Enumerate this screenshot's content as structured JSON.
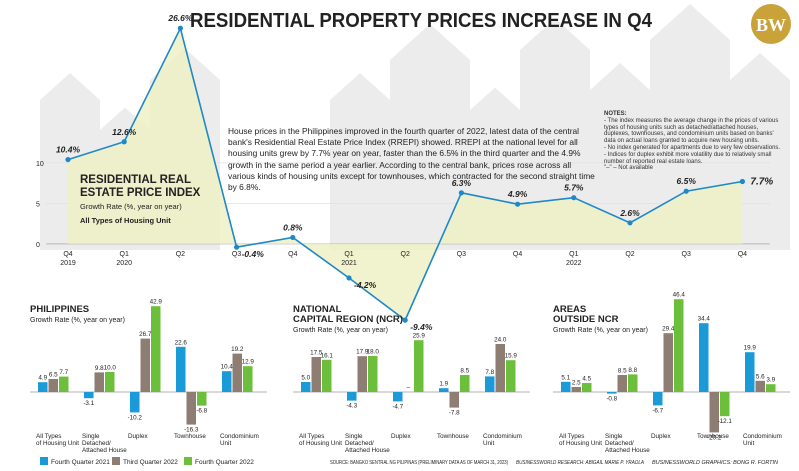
{
  "title": "RESIDENTIAL PROPERTY PRICES INCREASE IN Q4",
  "logo": "BW",
  "summary": "House prices in the Philippines improved in the fourth quarter of 2022, latest data of the central bank's Residential Real Estate Price Index (RREPI) showed. RREPI at the national level for all housing units grew by 7.7% year on year, faster than the 6.5% in the third quarter and the 4.9% growth in the same period a year earlier. According to the central bank, prices rose across all various kinds of housing units except for townhouses, which contracted for the second straight time by 6.8%.",
  "notes": {
    "heading": "NOTES:",
    "items": [
      "- The index measures the average change in the prices of various types of housing units such as detached/attached houses, duplexes, townhouses, and condominium units based on banks' data on actual loans granted to acquire new housing units.",
      "- No index generated for apartments due to very few observations.",
      "- Indices for duplex exhibit more volatility due to relatively small number of reported real estate loans.",
      "\"–\" – Not available"
    ]
  },
  "chart_data": [
    {
      "type": "line",
      "title_lines": [
        "RESIDENTIAL REAL",
        "ESTATE PRICE INDEX"
      ],
      "subtitle": "Growth Rate (%, year on year)",
      "series_name": "All Types of Housing Unit",
      "categories": [
        "Q4",
        "Q1",
        "Q2",
        "Q3",
        "Q4",
        "Q1",
        "Q2",
        "Q3",
        "Q4",
        "Q1",
        "Q2",
        "Q3",
        "Q4"
      ],
      "years": [
        "2019",
        "2020",
        null,
        null,
        null,
        "2021",
        null,
        null,
        null,
        "2022",
        null,
        null,
        null
      ],
      "values": [
        10.4,
        12.6,
        26.6,
        -0.4,
        0.8,
        -4.2,
        -9.4,
        6.3,
        4.9,
        5.7,
        2.6,
        6.5,
        7.7
      ],
      "value_labels": [
        "10.4%",
        "12.6%",
        "26.6%",
        "-0.4%",
        "0.8%",
        "-4.2%",
        "-9.4%",
        "6.3%",
        "4.9%",
        "5.7%",
        "2.6%",
        "6.5%",
        "7.7%"
      ],
      "color": "#1e88c8",
      "area_color": "#eff0c6",
      "ylim": [
        -10,
        27
      ],
      "yticks": [
        0,
        5,
        10
      ],
      "grid": true
    },
    {
      "type": "bar",
      "title_lines": [
        "PHILIPPINES"
      ],
      "subtitle": "Growth Rate (%, year on year)",
      "categories": [
        [
          "All Types",
          "of Housing Unit"
        ],
        [
          "Single",
          "Detached/",
          "Attached House"
        ],
        [
          "Duplex"
        ],
        [
          "Townhouse"
        ],
        [
          "Condominium",
          "Unit"
        ]
      ],
      "series": [
        {
          "name": "Fourth Quarter 2021",
          "color": "#1a9ad6",
          "values": [
            4.9,
            -3.1,
            -10.2,
            22.6,
            10.4
          ],
          "value_labels": [
            "4.9",
            "-3.1",
            "-10.2",
            "22.6",
            "10.4"
          ]
        },
        {
          "name": "Third Quarter 2022",
          "color": "#8e7d73",
          "values": [
            6.5,
            9.8,
            26.7,
            -16.3,
            19.2
          ],
          "value_labels": [
            "6.5",
            "9.8",
            "26.7",
            "-16.3",
            "19.2"
          ]
        },
        {
          "name": "Fourth Quarter 2022",
          "color": "#6cbf3b",
          "values": [
            7.7,
            10.0,
            42.9,
            -6.8,
            12.9
          ],
          "value_labels": [
            "7.7",
            "10.0",
            "42.9",
            "-6.8",
            "12.9"
          ]
        }
      ],
      "ylim": [
        -22,
        48
      ]
    },
    {
      "type": "bar",
      "title_lines": [
        "NATIONAL",
        "CAPITAL REGION (NCR)"
      ],
      "subtitle": "Growth Rate (%, year on year)",
      "categories": [
        [
          "All Types",
          "of Housing Unit"
        ],
        [
          "Single",
          "Detached/",
          "Attached House"
        ],
        [
          "Duplex"
        ],
        [
          "Townhouse"
        ],
        [
          "Condominium",
          "Unit"
        ]
      ],
      "series": [
        {
          "color": "#1a9ad6",
          "values": [
            5.0,
            -4.3,
            -4.7,
            1.9,
            7.8
          ],
          "value_labels": [
            "5.0",
            "-4.3",
            "-4.7",
            "1.9",
            "7.8"
          ]
        },
        {
          "color": "#8e7d73",
          "values": [
            17.5,
            17.9,
            null,
            -7.8,
            24.0
          ],
          "value_labels": [
            "17.5",
            "17.9",
            "–",
            "-7.8",
            "24.0"
          ]
        },
        {
          "color": "#6cbf3b",
          "values": [
            16.1,
            18.0,
            25.9,
            8.5,
            15.9
          ],
          "value_labels": [
            "16.1",
            "18.0",
            "25.9",
            "8.5",
            "15.9"
          ]
        }
      ],
      "ylim": [
        -22,
        48
      ]
    },
    {
      "type": "bar",
      "title_lines": [
        "AREAS",
        "OUTSIDE NCR"
      ],
      "subtitle": "Growth Rate (%, year on year)",
      "categories": [
        [
          "All Types",
          "of Housing Unit"
        ],
        [
          "Single",
          "Detached/",
          "Attached House"
        ],
        [
          "Duplex"
        ],
        [
          "Townhouse"
        ],
        [
          "Condominium",
          "Unit"
        ]
      ],
      "series": [
        {
          "color": "#1a9ad6",
          "values": [
            5.1,
            -0.8,
            -6.7,
            34.4,
            19.9
          ],
          "value_labels": [
            "5.1",
            "-0.8",
            "-6.7",
            "34.4",
            "19.9"
          ]
        },
        {
          "color": "#8e7d73",
          "values": [
            2.5,
            8.5,
            29.4,
            -20.2,
            5.6
          ],
          "value_labels": [
            "2.5",
            "8.5",
            "29.4",
            "-20.2",
            "5.6"
          ]
        },
        {
          "color": "#6cbf3b",
          "values": [
            4.5,
            8.8,
            46.4,
            -12.1,
            3.9
          ],
          "value_labels": [
            "4.5",
            "8.8",
            "46.4",
            "-12.1",
            "3.9"
          ]
        }
      ],
      "ylim": [
        -22,
        48
      ]
    }
  ],
  "footer": {
    "source": "SOURCE: BANGKO SENTRAL NG PILIPINAS (PRELIMINARY DATA AS OF MARCH 31, 2023)",
    "research": "BUSINESSWORLD RESEARCH: ABIGAIL MARIE P. YRAOLA",
    "graphics": "BUSINESSWORLD GRAPHICS: BONG R. FORTIN"
  }
}
